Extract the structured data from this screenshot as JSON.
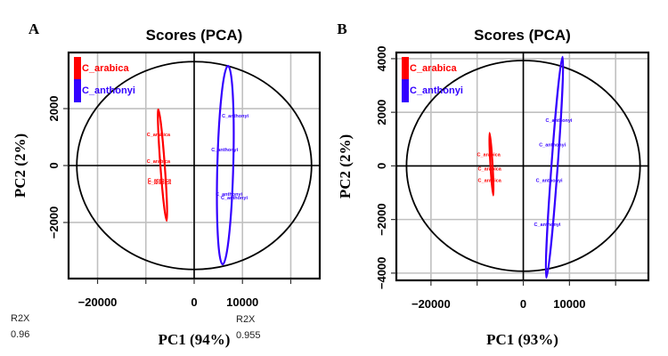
{
  "chart_data": [
    {
      "type": "scatter",
      "panel": "A",
      "title": "Scores (PCA)",
      "xlabel": "PC1 (94%)",
      "ylabel": "PC2 (2%)",
      "r2x_label": "R2X",
      "r2x_value": "0.96",
      "xlim": [
        -26000,
        26000
      ],
      "ylim": [
        -3970,
        3970
      ],
      "xticks": [
        -20000,
        -10000,
        0,
        10000,
        20000
      ],
      "xtick_labels": [
        "−20000",
        "",
        "0",
        "10000",
        ""
      ],
      "yticks": [
        -2000,
        0,
        2000
      ],
      "ytick_labels": [
        "−2000",
        "0",
        "2000"
      ],
      "grid": true,
      "legend_position": "top-left",
      "confidence_ellipse": {
        "rx": 24300,
        "ry": 3650
      },
      "series": [
        {
          "name": "C_arabica",
          "color": "#ff0000",
          "points": [
            {
              "x": -7400,
              "y": 1090,
              "label": "C_arabica"
            },
            {
              "x": -7400,
              "y": 160,
              "label": "C_arabica"
            },
            {
              "x": -7200,
              "y": -500,
              "label": "C_arabica"
            },
            {
              "x": -7200,
              "y": -590,
              "label": "C_arabica"
            }
          ],
          "ellipse_axis": {
            "top": {
              "x": -7400,
              "y": 1970
            },
            "bottom": {
              "x": -5700,
              "y": -1940
            },
            "minor": 900
          }
        },
        {
          "name": "C_anthonyi",
          "color": "#3300ff",
          "points": [
            {
              "x": 8500,
              "y": 1750,
              "label": "C_anthonyi"
            },
            {
              "x": 6300,
              "y": 560,
              "label": "C_anthonyi"
            },
            {
              "x": 7200,
              "y": -1000,
              "label": "C_anthonyi"
            },
            {
              "x": 8300,
              "y": -1125,
              "label": "C_anthonyi"
            }
          ],
          "ellipse_axis": {
            "top": {
              "x": 7000,
              "y": 3500
            },
            "bottom": {
              "x": 5900,
              "y": -3470
            },
            "minor": 3300
          }
        }
      ]
    },
    {
      "type": "scatter",
      "panel": "B",
      "title": "Scores (PCA)",
      "xlabel": "PC1 (93%)",
      "ylabel": "PC2 (2%)",
      "r2x_label": "R2X",
      "r2x_value": "0.955",
      "xlim": [
        -27500,
        27100
      ],
      "ylim": [
        -4270,
        4230
      ],
      "xticks": [
        -20000,
        -10000,
        0,
        10000,
        20000
      ],
      "xtick_labels": [
        "−20000",
        "",
        "0",
        "10000",
        ""
      ],
      "yticks": [
        -4000,
        -2000,
        0,
        2000,
        4000
      ],
      "ytick_labels": [
        "−4000",
        "−2000",
        "0",
        "2000",
        "4000"
      ],
      "grid": true,
      "legend_position": "top-left",
      "confidence_ellipse": {
        "rx": 25300,
        "ry": 3930
      },
      "series": [
        {
          "name": "C_arabica",
          "color": "#ff0000",
          "points": [
            {
              "x": -7500,
              "y": 430,
              "label": "C_arabica"
            },
            {
              "x": -7300,
              "y": -100,
              "label": "C_arabica"
            },
            {
              "x": -7300,
              "y": -530,
              "label": "C_arabica"
            }
          ],
          "ellipse_axis": {
            "top": {
              "x": -7300,
              "y": 1230
            },
            "bottom": {
              "x": -6500,
              "y": -1100
            },
            "minor": 350
          }
        },
        {
          "name": "C_anthonyi",
          "color": "#3300ff",
          "points": [
            {
              "x": 7700,
              "y": 1700,
              "label": "C_anthonyi"
            },
            {
              "x": 6300,
              "y": 800,
              "label": "C_anthonyi"
            },
            {
              "x": 5600,
              "y": -530,
              "label": "C_anthonyi"
            },
            {
              "x": 5200,
              "y": -2170,
              "label": "C_anthonyi"
            }
          ],
          "ellipse_axis": {
            "top": {
              "x": 8500,
              "y": 4070
            },
            "bottom": {
              "x": 5000,
              "y": -4170
            },
            "minor": 1350
          }
        }
      ]
    }
  ]
}
